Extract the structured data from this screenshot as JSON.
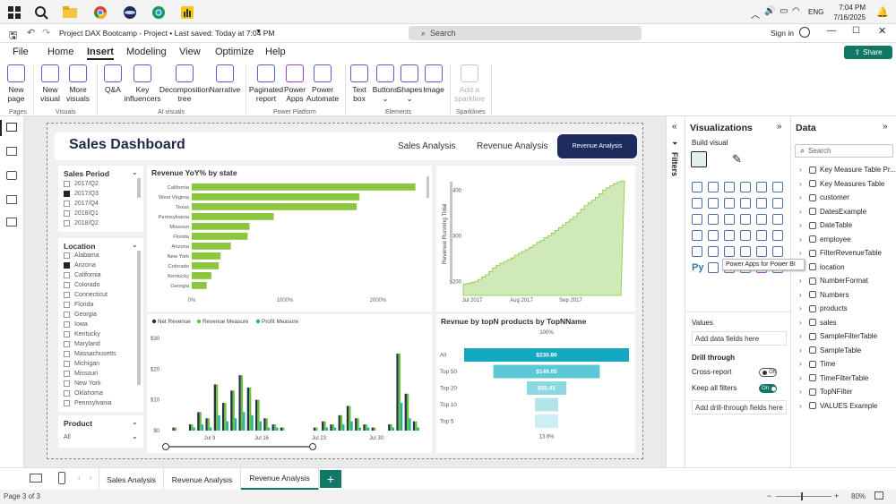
{
  "taskbar": {
    "time": "7:04 PM",
    "date": "7/16/2025",
    "lang": "ENG"
  },
  "titlebar": {
    "title": "Project DAX Bootcamp - Project • Last saved: Today at 7:04 PM",
    "search_placeholder": "Search",
    "signin": "Sign in",
    "share": "Share"
  },
  "menu": [
    "File",
    "Home",
    "Insert",
    "Modeling",
    "View",
    "Optimize",
    "Help"
  ],
  "ribbon": {
    "buttons": [
      {
        "l1": "New",
        "l2": "page"
      },
      {
        "l1": "New",
        "l2": "visual"
      },
      {
        "l1": "More",
        "l2": "visuals"
      },
      {
        "l1": "Q&A",
        "l2": ""
      },
      {
        "l1": "Key",
        "l2": "influencers"
      },
      {
        "l1": "Decomposition",
        "l2": "tree"
      },
      {
        "l1": "Narrative",
        "l2": ""
      },
      {
        "l1": "Paginated",
        "l2": "report"
      },
      {
        "l1": "Power",
        "l2": "Apps"
      },
      {
        "l1": "Power",
        "l2": "Automate"
      },
      {
        "l1": "Text",
        "l2": "box"
      },
      {
        "l1": "Buttons",
        "l2": ""
      },
      {
        "l1": "Shapes",
        "l2": ""
      },
      {
        "l1": "Image",
        "l2": ""
      },
      {
        "l1": "Add a",
        "l2": "sparkline"
      }
    ],
    "groups": [
      "Pages",
      "Visuals",
      "AI visuals",
      "Power Platform",
      "Elements",
      "Sparklines"
    ]
  },
  "report": {
    "title": "Sales Dashboard",
    "nav": [
      "Sales Analysis",
      "Revenue Analysis",
      "Revenue Analysis"
    ],
    "slicer_period": {
      "title": "Sales Period",
      "items": [
        {
          "label": "2017/Q2",
          "checked": false
        },
        {
          "label": "2017/Q3",
          "checked": true
        },
        {
          "label": "2017/Q4",
          "checked": false
        },
        {
          "label": "2018/Q1",
          "checked": false
        },
        {
          "label": "2018/Q2",
          "checked": false
        }
      ]
    },
    "slicer_location": {
      "title": "Location",
      "items": [
        {
          "label": "Alabama",
          "checked": false
        },
        {
          "label": "Arizona",
          "checked": true
        },
        {
          "label": "California",
          "checked": false
        },
        {
          "label": "Colorado",
          "checked": false
        },
        {
          "label": "Connecticut",
          "checked": false
        },
        {
          "label": "Florida",
          "checked": false
        },
        {
          "label": "Georgia",
          "checked": false
        },
        {
          "label": "Iowa",
          "checked": false
        },
        {
          "label": "Kentucky",
          "checked": false
        },
        {
          "label": "Maryland",
          "checked": false
        },
        {
          "label": "Massachusetts",
          "checked": false
        },
        {
          "label": "Michigan",
          "checked": false
        },
        {
          "label": "Missouri",
          "checked": false
        },
        {
          "label": "New York",
          "checked": false
        },
        {
          "label": "Oklahoma",
          "checked": false
        },
        {
          "label": "Pennsylvania",
          "checked": false
        }
      ]
    },
    "slicer_product": {
      "title": "Product",
      "value": "All"
    }
  },
  "chart_data": [
    {
      "type": "bar",
      "title": "Revenue YoY% by state",
      "categories": [
        "California",
        "West Virginia",
        "Texas",
        "Pennsylvania",
        "Missouri",
        "Florida",
        "Arizona",
        "New York",
        "Colorado",
        "Kentucky",
        "Georgia"
      ],
      "values": [
        2400,
        1800,
        1770,
        880,
        620,
        600,
        420,
        310,
        290,
        210,
        160
      ],
      "xticks": [
        "0%",
        "1000%",
        "2000%"
      ],
      "xlim": [
        0,
        2500
      ],
      "color": "#8cc63f"
    },
    {
      "type": "area",
      "title": "",
      "ylabel": "Revenue Running Total",
      "yticks": [
        "$200",
        "$300",
        "$400"
      ],
      "ylim": [
        170,
        430
      ],
      "xticks": [
        "Jul 2017",
        "Aug 2017",
        "Sep 2017"
      ],
      "values": [
        195,
        196,
        198,
        200,
        205,
        210,
        215,
        222,
        230,
        236,
        240,
        244,
        248,
        252,
        258,
        262,
        266,
        270,
        275,
        280,
        286,
        290,
        296,
        300,
        306,
        312,
        318,
        324,
        330,
        336,
        342,
        350,
        358,
        366,
        372,
        378,
        384,
        392,
        400,
        405,
        410,
        414,
        418,
        420
      ],
      "color": "#8cc63f"
    },
    {
      "type": "bar",
      "title": "",
      "legend": [
        "Net Revenue",
        "Revenue Measure",
        "Profit Measure"
      ],
      "colors": [
        "#263346",
        "#6dbf3f",
        "#17b3a3"
      ],
      "yticks": [
        "$0",
        "$10",
        "$20",
        "$30"
      ],
      "ylim": [
        0,
        32
      ],
      "xticks": [
        "Jul 9",
        "Jul 16",
        "Jul 23",
        "Jul 30"
      ],
      "series": [
        {
          "name": "Net Revenue",
          "values": [
            0,
            1,
            0,
            2,
            6,
            4,
            15,
            9,
            13,
            18,
            14,
            10,
            4,
            2,
            1,
            0,
            0,
            0,
            1,
            3,
            2,
            5,
            8,
            4,
            2,
            1,
            0,
            2,
            25,
            12,
            3
          ]
        },
        {
          "name": "Revenue Measure",
          "values": [
            0,
            1,
            0,
            2,
            6,
            4,
            15,
            9,
            13,
            18,
            14,
            10,
            4,
            2,
            1,
            0,
            0,
            0,
            1,
            3,
            2,
            5,
            8,
            4,
            2,
            1,
            0,
            2,
            25,
            12,
            3
          ]
        },
        {
          "name": "Profit Measure",
          "values": [
            0,
            0,
            0,
            1,
            2,
            1,
            5,
            3,
            4,
            6,
            5,
            3,
            1,
            1,
            0,
            0,
            0,
            0,
            0,
            1,
            1,
            2,
            3,
            1,
            1,
            0,
            0,
            1,
            9,
            4,
            1
          ]
        }
      ]
    },
    {
      "type": "bar",
      "title": "Revnue by topN products by TopNName",
      "categories": [
        "All",
        "Top 50",
        "Top 20",
        "Top 10",
        "Top 5"
      ],
      "values": [
        230.8,
        149.05,
        55.41,
        30.5,
        21.0
      ],
      "labels": [
        "$230.80",
        "$149.05",
        "$55.41",
        "",
        ""
      ],
      "top_label": "100%",
      "bottom_label": "13.6%",
      "colors": [
        "#13a8be",
        "#5cc7d6",
        "#8dd7e2",
        "#b3e4ec",
        "#cdeef3"
      ]
    }
  ],
  "filters_label": "Filters",
  "viz_pane": {
    "title": "Visualizations",
    "build": "Build visual",
    "tooltip": "Power Apps for Power BI",
    "values": "Values",
    "values_well": "Add data fields here",
    "drill": "Drill through",
    "cross": "Cross-report",
    "cross_state": "Off",
    "keep": "Keep all filters",
    "keep_state": "On",
    "drill_well": "Add drill-through fields here"
  },
  "data_pane": {
    "title": "Data",
    "search": "Search",
    "fields": [
      "Key Measure Table Pr...",
      "Key Measures Table",
      "customer",
      "DatesExample",
      "DateTable",
      "employee",
      "FilterRevenueTable",
      "location",
      "NumberFormat",
      "Numbers",
      "products",
      "sales",
      "SampleFilterTable",
      "SampleTable",
      "Time",
      "TimeFilterTable",
      "TopNFilter",
      "VALUES Example"
    ]
  },
  "pages": [
    "Sales Analysis",
    "Revenue Analysis",
    "Revenue Analysis"
  ],
  "status": {
    "page": "Page 3 of 3",
    "zoom": "80%"
  }
}
